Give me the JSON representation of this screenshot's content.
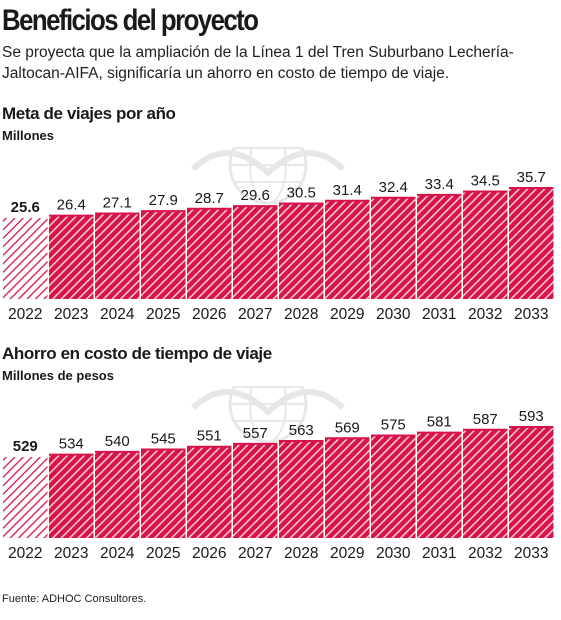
{
  "header": {
    "title": "Beneficios del proyecto",
    "intro": "Se proyecta que la ampliación de la Línea 1 del Tren Suburbano Lechería-Jaltocan-AIFA, significaría un ahorro en costo de tiempo de viaje."
  },
  "colors": {
    "bar": "#d7144a",
    "stripe": "#ffffff",
    "hatch": "#d7144a",
    "text": "#1a1a1a"
  },
  "chart_data": [
    {
      "type": "bar",
      "title": "Meta de viajes por año",
      "unit": "Millones",
      "categories": [
        "2022",
        "2023",
        "2024",
        "2025",
        "2026",
        "2027",
        "2028",
        "2029",
        "2030",
        "2031",
        "2032",
        "2033"
      ],
      "values": [
        25.6,
        26.4,
        27.1,
        27.9,
        28.7,
        29.6,
        30.5,
        31.4,
        32.4,
        33.4,
        34.5,
        35.7
      ],
      "value_labels": [
        "25.6",
        "26.4",
        "27.1",
        "27.9",
        "28.7",
        "29.6",
        "30.5",
        "31.4",
        "32.4",
        "33.4",
        "34.5",
        "35.7"
      ],
      "first_bar_style": "hatched-outline",
      "legend": "none",
      "grid": false
    },
    {
      "type": "bar",
      "title": "Ahorro en costo de tiempo de viaje",
      "unit": "Millones de pesos",
      "categories": [
        "2022",
        "2023",
        "2024",
        "2025",
        "2026",
        "2027",
        "2028",
        "2029",
        "2030",
        "2031",
        "2032",
        "2033"
      ],
      "values": [
        529,
        534,
        540,
        545,
        551,
        557,
        563,
        569,
        575,
        581,
        587,
        593
      ],
      "value_labels": [
        "529",
        "534",
        "540",
        "545",
        "551",
        "557",
        "563",
        "569",
        "575",
        "581",
        "587",
        "593"
      ],
      "first_bar_style": "hatched-outline",
      "legend": "none",
      "grid": false
    }
  ],
  "footer": {
    "source": "Fuente: ADHOC Consultores."
  }
}
